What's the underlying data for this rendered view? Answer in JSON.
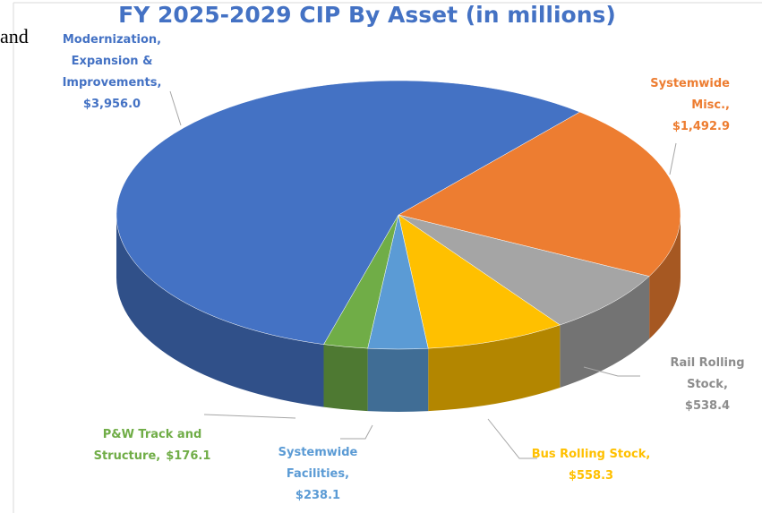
{
  "annotation": "and",
  "chart_data": {
    "type": "pie3d",
    "title": "FY 2025-2029 CIP By Asset (in millions)",
    "categories": [
      "Systemwide Misc.,",
      "Rail Rolling Stock,",
      "Bus Rolling Stock,",
      "Systemwide Facilities,",
      "P&W Track and Structure,",
      "Modernization, Expansion & Improvements,"
    ],
    "values": [
      1492.9,
      538.4,
      558.3,
      238.1,
      176.1,
      3956.0
    ],
    "value_labels": [
      "$1,492.9",
      "$538.4",
      "$558.3",
      "$238.1",
      "$176.1",
      "$3,956.0"
    ],
    "colors": [
      "#ed7d31",
      "#a5a5a5",
      "#ffc000",
      "#5b9bd5",
      "#70ad47",
      "#4472c4"
    ]
  }
}
